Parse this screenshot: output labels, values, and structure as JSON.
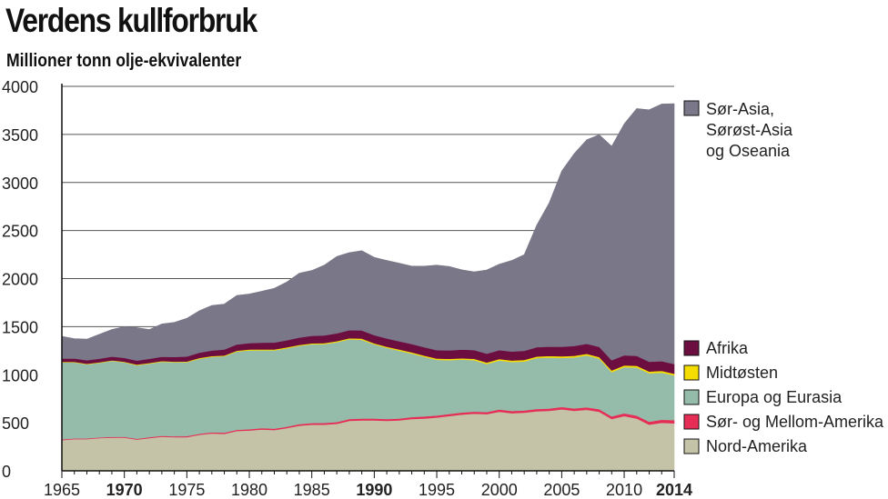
{
  "chart_data": {
    "type": "area",
    "title": "Verdens kullforbruk",
    "subtitle": "Millioner tonn olje-ekvivalenter",
    "xlabel": "",
    "ylabel": "",
    "xlim": [
      1965,
      2014
    ],
    "ylim": [
      0,
      4000
    ],
    "x_ticks": [
      1965,
      1970,
      1975,
      1980,
      1985,
      1990,
      1995,
      2000,
      2005,
      2010,
      2014
    ],
    "x_ticks_bold": [
      1970,
      1990,
      2014
    ],
    "y_ticks": [
      0,
      500,
      1000,
      1500,
      2000,
      2500,
      3000,
      3500,
      4000
    ],
    "grid": "horizontal",
    "legend_position": "right",
    "stacked": true,
    "x": [
      1965,
      1966,
      1967,
      1968,
      1969,
      1970,
      1971,
      1972,
      1973,
      1974,
      1975,
      1976,
      1977,
      1978,
      1979,
      1980,
      1981,
      1982,
      1983,
      1984,
      1985,
      1986,
      1987,
      1988,
      1989,
      1990,
      1991,
      1992,
      1993,
      1994,
      1995,
      1996,
      1997,
      1998,
      1999,
      2000,
      2001,
      2002,
      2003,
      2004,
      2005,
      2006,
      2007,
      2008,
      2009,
      2010,
      2011,
      2012,
      2013,
      2014
    ],
    "series": [
      {
        "name": "Nord-Amerika",
        "color": "#c4c3a8",
        "values": [
          320,
          330,
          330,
          340,
          345,
          345,
          325,
          340,
          355,
          350,
          350,
          375,
          390,
          385,
          415,
          420,
          430,
          425,
          445,
          470,
          480,
          480,
          490,
          520,
          525,
          525,
          520,
          525,
          540,
          545,
          555,
          570,
          585,
          595,
          590,
          615,
          600,
          605,
          620,
          625,
          640,
          625,
          635,
          615,
          540,
          570,
          545,
          480,
          500,
          495
        ]
      },
      {
        "name": "Sør- og Mellom-Amerika",
        "color": "#e62d55",
        "values": [
          8,
          8,
          8,
          8,
          9,
          9,
          9,
          10,
          10,
          10,
          11,
          11,
          11,
          12,
          12,
          13,
          14,
          14,
          15,
          16,
          17,
          18,
          18,
          19,
          19,
          20,
          20,
          20,
          20,
          21,
          21,
          22,
          22,
          22,
          22,
          23,
          23,
          23,
          24,
          24,
          25,
          25,
          26,
          27,
          27,
          29,
          30,
          31,
          32,
          33
        ]
      },
      {
        "name": "Europa og Eurasia",
        "color": "#95bbab",
        "values": [
          800,
          790,
          770,
          775,
          790,
          775,
          765,
          765,
          770,
          770,
          770,
          780,
          785,
          795,
          815,
          820,
          810,
          815,
          815,
          815,
          820,
          820,
          830,
          830,
          820,
          770,
          740,
          705,
          660,
          620,
          580,
          560,
          550,
          535,
          500,
          510,
          510,
          510,
          530,
          530,
          510,
          530,
          540,
          525,
          460,
          480,
          500,
          505,
          490,
          465
        ]
      },
      {
        "name": "Midtøsten",
        "color": "#f5dd00",
        "values": [
          6,
          6,
          6,
          6,
          6,
          6,
          6,
          7,
          7,
          7,
          7,
          8,
          8,
          8,
          8,
          9,
          9,
          9,
          10,
          10,
          10,
          11,
          11,
          11,
          12,
          12,
          12,
          12,
          13,
          13,
          13,
          14,
          14,
          14,
          15,
          15,
          15,
          16,
          16,
          16,
          17,
          17,
          17,
          17,
          18,
          18,
          18,
          18,
          18,
          18
        ]
      },
      {
        "name": "Afrika",
        "color": "#6d0e41",
        "values": [
          35,
          36,
          37,
          38,
          39,
          40,
          42,
          44,
          46,
          48,
          52,
          55,
          58,
          62,
          65,
          68,
          70,
          72,
          74,
          76,
          78,
          80,
          82,
          84,
          85,
          85,
          86,
          86,
          86,
          87,
          87,
          88,
          90,
          91,
          92,
          93,
          94,
          95,
          97,
          98,
          100,
          102,
          104,
          106,
          106,
          105,
          103,
          102,
          101,
          100
        ]
      },
      {
        "name": "Sør-Asia, Sørøst-Asia og Oseania",
        "label_lines": [
          "Sør-Asia,",
          "Sørøst-Asia",
          "og Oseania"
        ],
        "color": "#7a7888",
        "values": [
          231,
          205,
          219,
          253,
          281,
          325,
          343,
          304,
          340,
          359,
          397,
          436,
          468,
          473,
          510,
          510,
          536,
          564,
          605,
          670,
          679,
          731,
          799,
          806,
          829,
          808,
          811,
          812,
          811,
          844,
          884,
          872,
          831,
          813,
          871,
          894,
          946,
          1001,
          1268,
          1497,
          1828,
          2001,
          2122,
          2207,
          2226,
          2408,
          2573,
          2620,
          2676,
          2709
        ]
      }
    ]
  }
}
